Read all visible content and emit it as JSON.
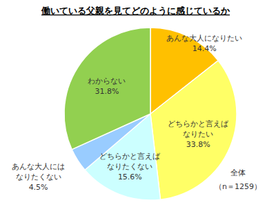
{
  "chart_data": {
    "type": "pie",
    "title": "働いている父親を見てどのように感じているか",
    "categories": [
      "あんな大人になりたい",
      "どちらかと言えば\nなりたい",
      "どちらかと言えば\nなりたくない",
      "あんな大人には\nなりたくない",
      "わからない"
    ],
    "values": [
      14.4,
      33.8,
      15.6,
      4.5,
      31.8
    ],
    "value_labels": [
      "14.4%",
      "33.8%",
      "15.6%",
      "4.5%",
      "31.8%"
    ],
    "colors": [
      "#ffc000",
      "#ffff66",
      "#ccffff",
      "#99ccff",
      "#92d050"
    ],
    "data_labels": true,
    "annotations": [
      "全体",
      "（n＝1259）"
    ]
  }
}
